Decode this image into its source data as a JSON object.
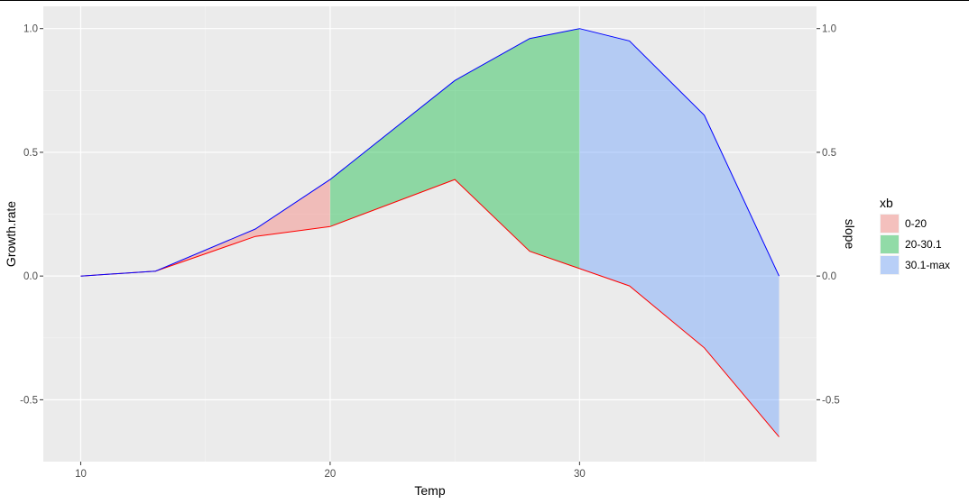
{
  "chart_data": {
    "type": "area",
    "x_axis": {
      "label": "Temp",
      "range": [
        8.5,
        39.5
      ],
      "ticks": [
        10,
        20,
        30
      ],
      "tick_labels": [
        "10",
        "20",
        "30"
      ],
      "minor_gridlines": [
        15,
        25,
        35
      ]
    },
    "y_axis_left": {
      "label": "Growth.rate",
      "range": [
        -0.75,
        1.09
      ],
      "ticks": [
        -0.5,
        0.0,
        0.5,
        1.0
      ],
      "tick_labels": [
        "-0.5",
        "0.0",
        "0.5",
        "1.0"
      ],
      "minor_gridlines": [
        -0.25,
        0.25,
        0.75
      ]
    },
    "y_axis_right": {
      "label": "slope",
      "ticks": [
        -0.5,
        0.0,
        0.5,
        1.0
      ],
      "tick_labels": [
        "-0.5",
        "0.0",
        "0.5",
        "1.0"
      ]
    },
    "upper_line": {
      "color": "#0000ff",
      "x": [
        10,
        13,
        17,
        20,
        25,
        28,
        30,
        32,
        35,
        38
      ],
      "y": [
        0.0,
        0.02,
        0.19,
        0.39,
        0.79,
        0.96,
        1.0,
        0.95,
        0.65,
        0.0
      ]
    },
    "lower_line": {
      "color": "#ff0000",
      "x": [
        10,
        13,
        17,
        20,
        25,
        28,
        30,
        32,
        35,
        38
      ],
      "y": [
        0.0,
        0.02,
        0.16,
        0.2,
        0.39,
        0.1,
        0.03,
        -0.04,
        -0.29,
        -0.65
      ]
    },
    "series": [
      {
        "name": "0-20",
        "color": "#f8766d",
        "x_from": 10,
        "x_to": 20
      },
      {
        "name": "20-30.1",
        "color": "#00ba38",
        "x_from": 20,
        "x_to": 30
      },
      {
        "name": "30.1-max",
        "color": "#619cff",
        "x_from": 30,
        "x_to": 38
      }
    ],
    "legend": {
      "title": "xb",
      "position": "right"
    },
    "grid": true
  }
}
